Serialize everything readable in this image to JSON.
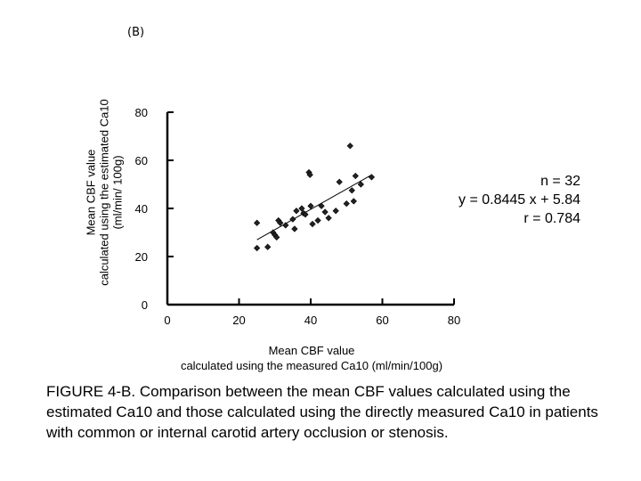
{
  "panel_label": "(B)",
  "chart_data": {
    "type": "scatter",
    "title": "",
    "xlabel": "Mean CBF value calculated using the  measured Ca10 (ml/min/100g)",
    "xlabel_lines": [
      "Mean CBF value",
      "calculated using the  measured Ca10 (ml/min/100g)"
    ],
    "ylabel": "Mean CBF value calculated using the estimated  Ca10 (ml/min/ 100g)",
    "ylabel_lines": [
      "Mean CBF value",
      "calculated using the estimated  Ca10",
      "(ml/min/ 100g)"
    ],
    "xlim": [
      0,
      80
    ],
    "ylim": [
      0,
      80
    ],
    "xticks": [
      "0",
      "20",
      "40",
      "60",
      "80"
    ],
    "yticks": [
      "0",
      "20",
      "40",
      "60",
      "80"
    ],
    "points": [
      {
        "x": 25.0,
        "y": 34.0
      },
      {
        "x": 25.0,
        "y": 23.5
      },
      {
        "x": 28.0,
        "y": 24.0
      },
      {
        "x": 29.5,
        "y": 30.0
      },
      {
        "x": 30.0,
        "y": 29.0
      },
      {
        "x": 30.5,
        "y": 28.0
      },
      {
        "x": 31.0,
        "y": 35.0
      },
      {
        "x": 31.5,
        "y": 34.0
      },
      {
        "x": 35.0,
        "y": 35.5
      },
      {
        "x": 35.5,
        "y": 31.5
      },
      {
        "x": 36.0,
        "y": 39.0
      },
      {
        "x": 37.5,
        "y": 40.0
      },
      {
        "x": 38.0,
        "y": 38.0
      },
      {
        "x": 38.5,
        "y": 37.5
      },
      {
        "x": 39.5,
        "y": 55.0
      },
      {
        "x": 39.8,
        "y": 54.0
      },
      {
        "x": 40.0,
        "y": 41.0
      },
      {
        "x": 40.5,
        "y": 33.5
      },
      {
        "x": 42.0,
        "y": 35.0
      },
      {
        "x": 43.0,
        "y": 41.0
      },
      {
        "x": 47.0,
        "y": 39.0
      },
      {
        "x": 48.0,
        "y": 51.0
      },
      {
        "x": 50.0,
        "y": 42.0
      },
      {
        "x": 51.0,
        "y": 66.0
      },
      {
        "x": 51.5,
        "y": 47.5
      },
      {
        "x": 52.0,
        "y": 43.0
      },
      {
        "x": 52.5,
        "y": 53.5
      },
      {
        "x": 54.0,
        "y": 50.0
      },
      {
        "x": 57.0,
        "y": 53.0
      },
      {
        "x": 45.0,
        "y": 36.0
      },
      {
        "x": 33.0,
        "y": 33.0
      },
      {
        "x": 44.0,
        "y": 38.5
      }
    ],
    "fit": {
      "slope": 0.8445,
      "intercept": 5.84,
      "x_range": [
        25,
        57
      ]
    },
    "annotations": [
      "n = 32",
      "y = 0.8445 x + 5.84",
      "r = 0.784"
    ]
  },
  "caption": "FIGURE  4-B. Comparison between the mean CBF values calculated using the estimated Ca10 and those calculated using the directly measured Ca10 in patients with common or internal carotid artery occlusion or stenosis."
}
